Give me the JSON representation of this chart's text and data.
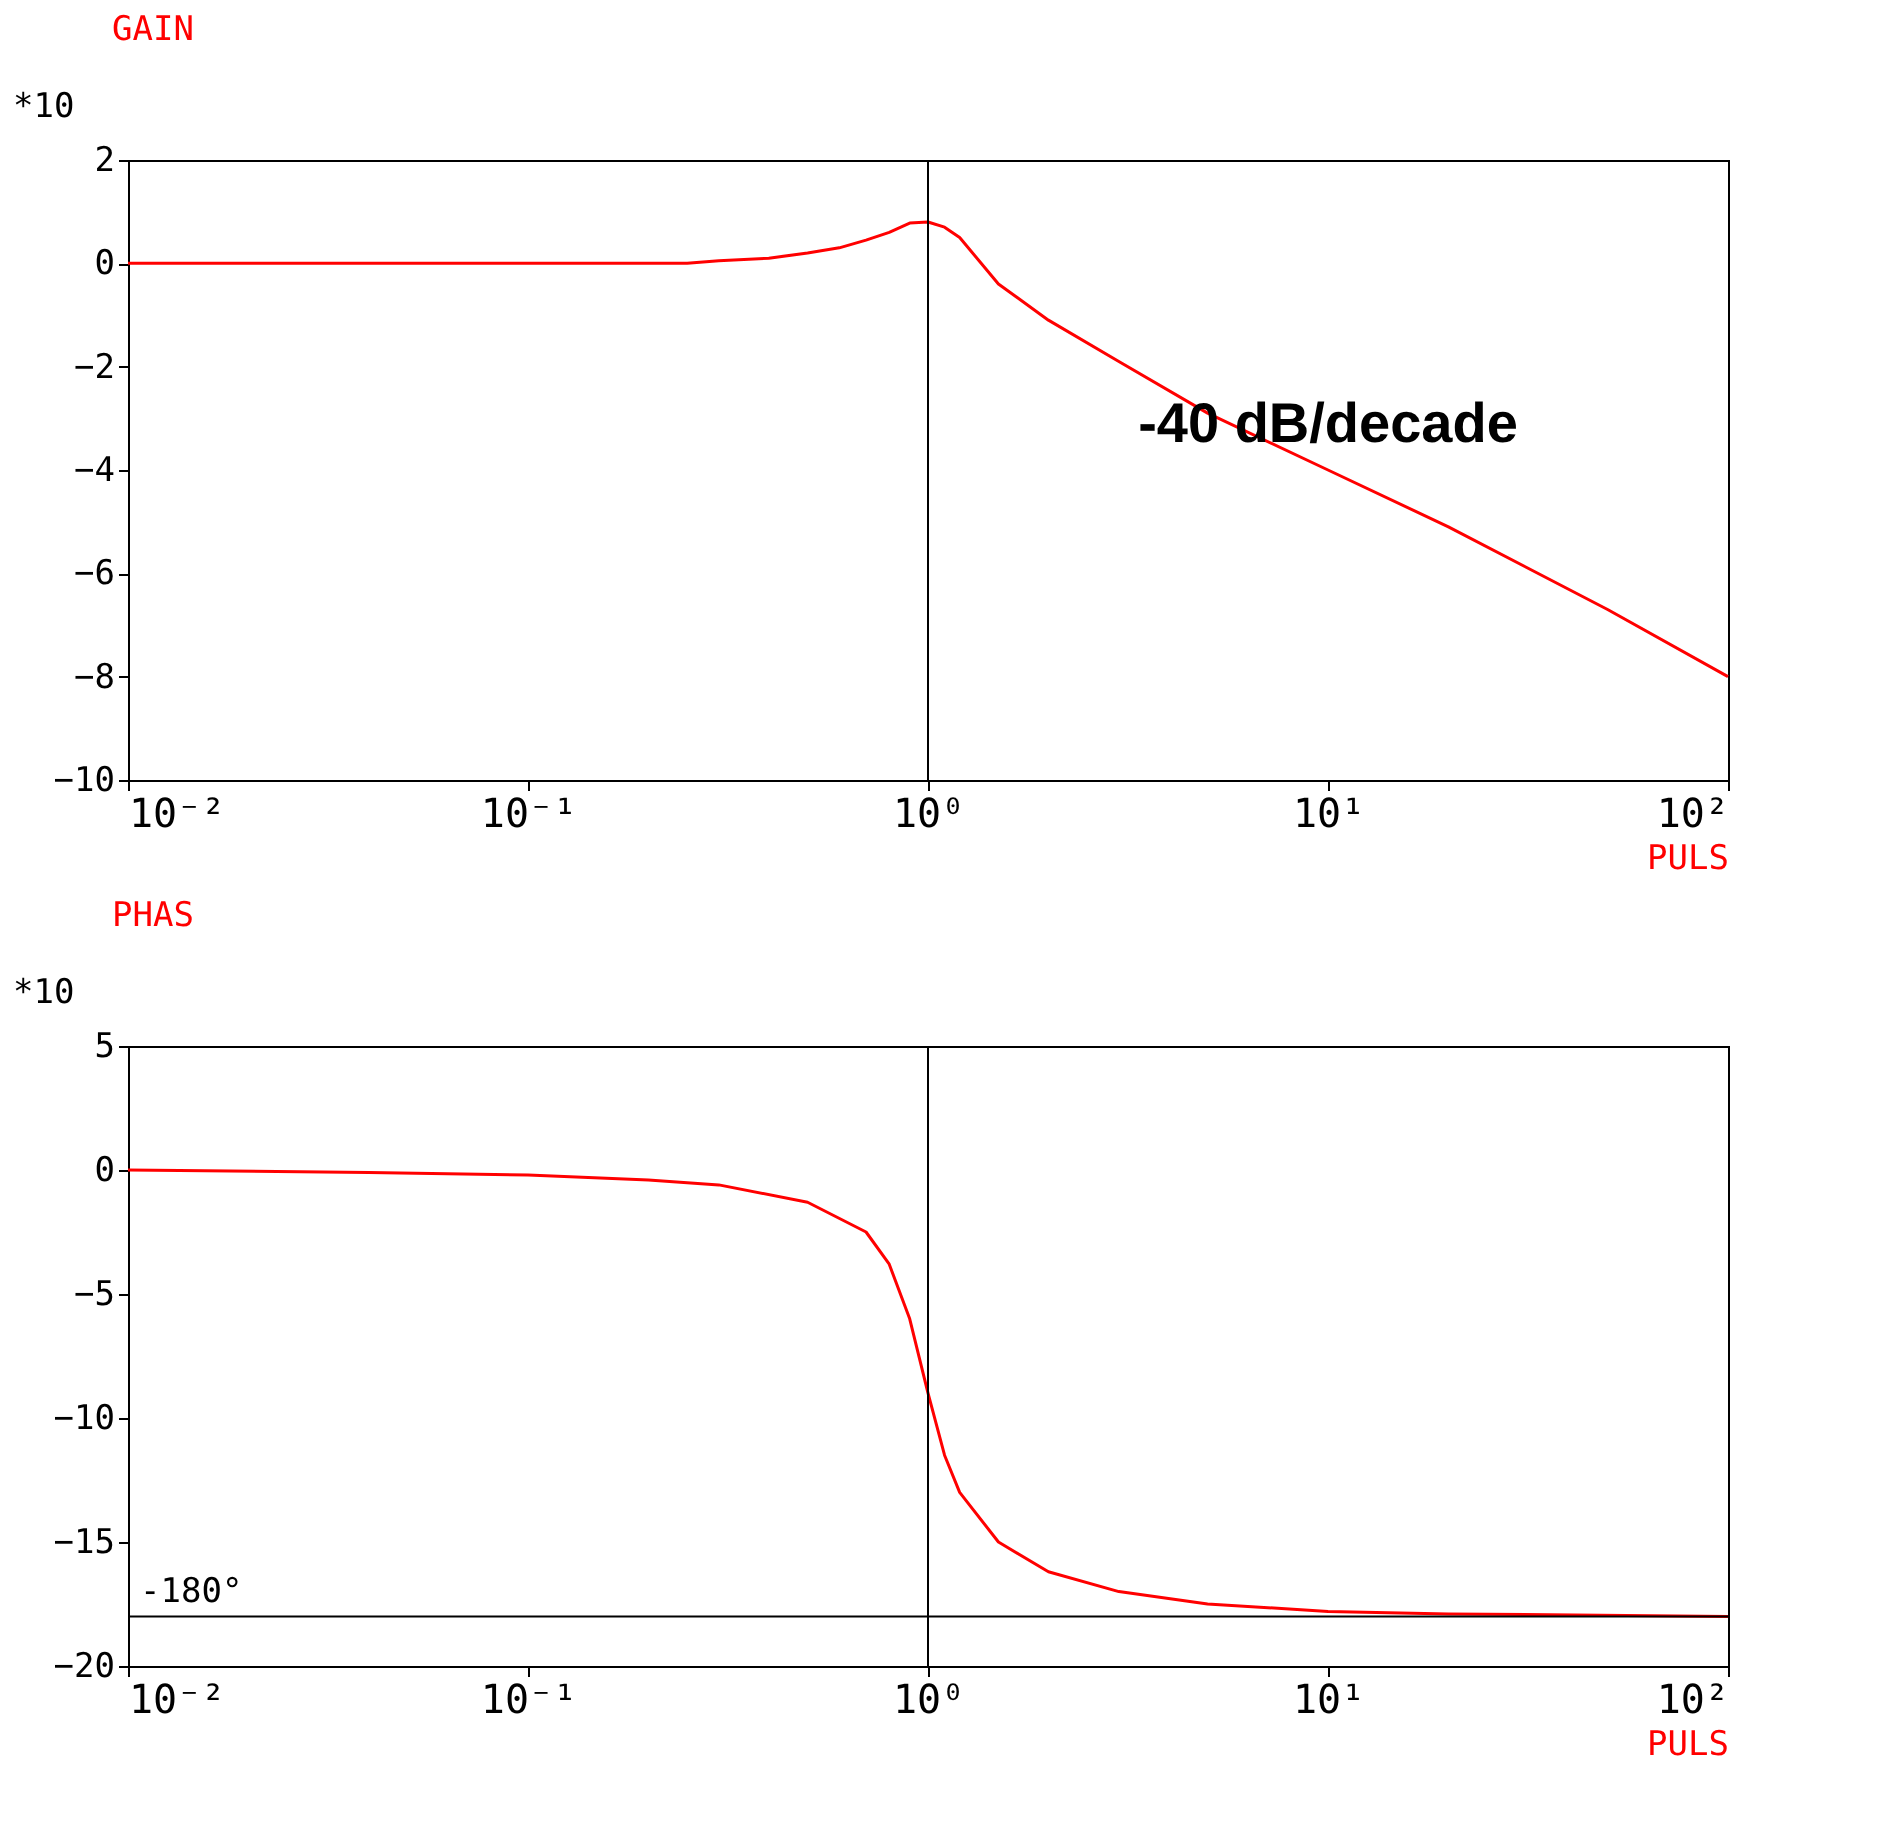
{
  "chart_data": [
    {
      "type": "line",
      "title": "GAIN",
      "ylabel": "*10",
      "xlabel": "PULS",
      "log": "x",
      "grid": false,
      "x": [
        0.01,
        0.03,
        0.1,
        0.25,
        0.3,
        0.4,
        0.5,
        0.6,
        0.7,
        0.8,
        0.9,
        1.0,
        1.1,
        1.2,
        1.5,
        2,
        3,
        5,
        10,
        20,
        50,
        100
      ],
      "series": [
        {
          "color": "#ff0000",
          "values": [
            0,
            0,
            0,
            0,
            0.05,
            0.1,
            0.2,
            0.3,
            0.45,
            0.6,
            0.78,
            0.8,
            0.7,
            0.5,
            -0.4,
            -1.1,
            -1.9,
            -2.9,
            -4.0,
            -5.1,
            -6.7,
            -8.0
          ]
        }
      ],
      "xlim": [
        0.01,
        100
      ],
      "ylim": [
        -10,
        2
      ],
      "xticks": [
        {
          "value": 0.01,
          "label": "10⁻²"
        },
        {
          "value": 0.1,
          "label": "10⁻¹"
        },
        {
          "value": 1,
          "label": "10⁰"
        },
        {
          "value": 10,
          "label": "10¹"
        },
        {
          "value": 100,
          "label": "10²"
        }
      ],
      "yticks": [
        -10,
        -8,
        -6,
        -4,
        -2,
        0,
        2
      ],
      "ref_lines": [
        {
          "axis": "x",
          "value": 1,
          "color": "#000000"
        }
      ],
      "annotations": [
        {
          "text": "-40 dB/decade",
          "x": 10,
          "y": -4
        }
      ]
    },
    {
      "type": "line",
      "title": "PHAS",
      "ylabel": "*10",
      "xlabel": "PULS",
      "log": "x",
      "grid": false,
      "x": [
        0.01,
        0.04,
        0.1,
        0.2,
        0.3,
        0.5,
        0.7,
        0.8,
        0.9,
        1.0,
        1.1,
        1.2,
        1.5,
        2,
        3,
        5,
        10,
        20,
        100
      ],
      "series": [
        {
          "color": "#ff0000",
          "values": [
            0,
            -0.1,
            -0.2,
            -0.4,
            -0.6,
            -1.3,
            -2.5,
            -3.8,
            -6,
            -9,
            -11.5,
            -13,
            -15,
            -16.2,
            -17,
            -17.5,
            -17.8,
            -17.9,
            -18
          ]
        }
      ],
      "xlim": [
        0.01,
        100
      ],
      "ylim": [
        -20,
        5
      ],
      "xticks": [
        {
          "value": 0.01,
          "label": "10⁻²"
        },
        {
          "value": 0.1,
          "label": "10⁻¹"
        },
        {
          "value": 1,
          "label": "10⁰"
        },
        {
          "value": 10,
          "label": "10¹"
        },
        {
          "value": 100,
          "label": "10²"
        }
      ],
      "yticks": [
        -20,
        -15,
        -10,
        -5,
        0,
        5
      ],
      "ref_lines": [
        {
          "axis": "x",
          "value": 1,
          "color": "#000000"
        },
        {
          "axis": "y",
          "value": -18,
          "color": "#000000"
        }
      ],
      "annotations": [
        "-180°"
      ]
    }
  ]
}
